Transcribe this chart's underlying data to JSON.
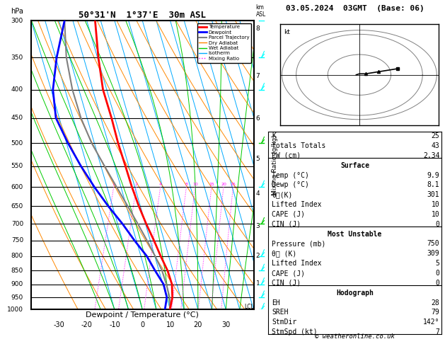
{
  "title_left": "50°31'N  1°37'E  30m ASL",
  "title_right": "03.05.2024  03GMT  (Base: 06)",
  "xlabel": "Dewpoint / Temperature (°C)",
  "ylabel_left": "hPa",
  "pressure_levels": [
    300,
    350,
    400,
    450,
    500,
    550,
    600,
    650,
    700,
    750,
    800,
    850,
    900,
    950,
    1000
  ],
  "background_color": "#ffffff",
  "legend_entries": [
    "Temperature",
    "Dewpoint",
    "Parcel Trajectory",
    "Dry Adiabat",
    "Wet Adiabat",
    "Isotherm",
    "Mixing Ratio"
  ],
  "legend_colors": [
    "#ff0000",
    "#0000ff",
    "#808080",
    "#ff8800",
    "#00cc00",
    "#00aaff",
    "#ff00ff"
  ],
  "legend_styles": [
    "-",
    "-",
    "-",
    "-",
    "-",
    "-",
    ":"
  ],
  "legend_widths": [
    2,
    2,
    1.5,
    1,
    1,
    1,
    1
  ],
  "sounding_temp": [
    9.9,
    9.5,
    8.0,
    5.0,
    1.0,
    -3.0,
    -7.5,
    -12.0,
    -16.5,
    -21.0,
    -26.0,
    -31.0,
    -37.0,
    -42.0,
    -47.0
  ],
  "sounding_dewp": [
    8.1,
    7.5,
    5.0,
    0.5,
    -4.0,
    -10.0,
    -16.0,
    -23.0,
    -30.0,
    -37.0,
    -44.0,
    -51.0,
    -55.0,
    -57.0,
    -58.0
  ],
  "parcel_temp": [
    9.9,
    8.5,
    6.0,
    3.0,
    -1.0,
    -5.5,
    -10.5,
    -16.0,
    -22.0,
    -28.5,
    -35.5,
    -42.0,
    -48.0,
    -53.5,
    -58.0
  ],
  "mixing_ratio_values": [
    1,
    2,
    4,
    8,
    10,
    15,
    20,
    25
  ],
  "km_labels": [
    1,
    2,
    3,
    4,
    5,
    6,
    7,
    8
  ],
  "km_pressures": [
    898,
    800,
    706,
    617,
    533,
    451,
    378,
    310
  ],
  "lcl_pressure": 990,
  "stats_k": "25",
  "stats_tt": "43",
  "stats_pw": "2.34",
  "surf_temp": "9.9",
  "surf_dewp": "8.1",
  "surf_thetae": "301",
  "surf_li": "10",
  "surf_cape": "10",
  "surf_cin": "0",
  "mu_pressure": "750",
  "mu_thetae": "309",
  "mu_li": "5",
  "mu_cape": "0",
  "mu_cin": "0",
  "hodo_eh": "28",
  "hodo_sreh": "79",
  "hodo_stmdir": "142°",
  "hodo_stmspd": "7",
  "copyright": "© weatheronline.co.uk"
}
